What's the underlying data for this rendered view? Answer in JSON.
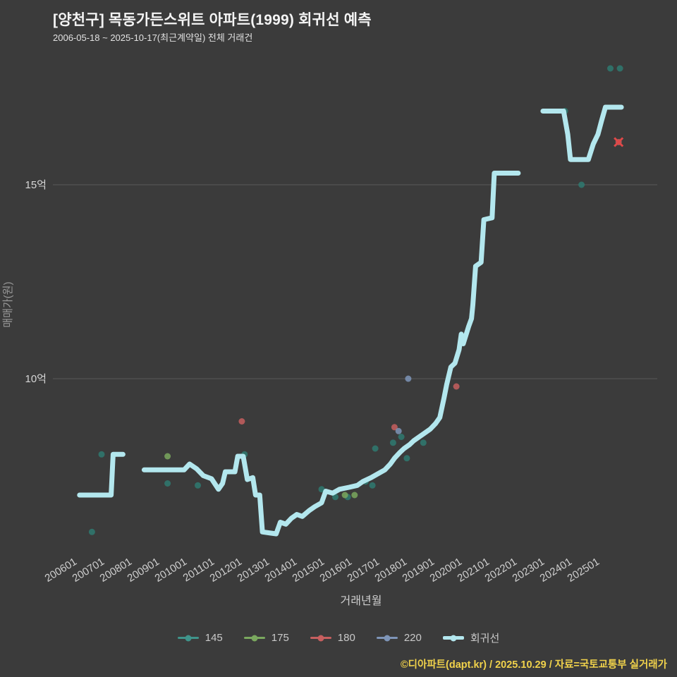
{
  "header": {
    "title": "[양천구] 목동가든스위트 아파트(1999) 회귀선 예측",
    "subtitle": "2006-05-18 ~ 2025-10-17(최근계약일) 전체 거래건"
  },
  "footer": {
    "text": "©디아파트(dapt.kr) / 2025.10.29 / 자료=국토교통부 실거래가"
  },
  "legend": {
    "items": [
      {
        "label": "145",
        "color": "#3f948b"
      },
      {
        "label": "175",
        "color": "#7aa85e"
      },
      {
        "label": "180",
        "color": "#c75f5f"
      },
      {
        "label": "220",
        "color": "#7e95b8"
      },
      {
        "label": "회귀선",
        "color": "#b3e7ee"
      }
    ]
  },
  "chart_data": {
    "type": "line",
    "title": "[양천구] 목동가든스위트 아파트(1999) 회귀선 예측",
    "subtitle": "2006-05-18 ~ 2025-10-17(최근계약일) 전체 거래건",
    "xlabel": "거래년월",
    "ylabel": "매매가(원)",
    "x_ticks": [
      "200601",
      "200701",
      "200801",
      "200901",
      "201001",
      "201101",
      "201201",
      "201301",
      "201401",
      "201501",
      "201601",
      "201701",
      "201801",
      "201901",
      "202001",
      "202101",
      "202201",
      "202301",
      "202401",
      "202501"
    ],
    "y_ticks": [
      {
        "label": "15억",
        "value": 15
      },
      {
        "label": "10억",
        "value": 10
      }
    ],
    "y_unit": "억",
    "ylim": [
      5.8,
      18.3
    ],
    "grid": "horizontal-only",
    "colors": {
      "background": "#3b3b3b",
      "gridline": "#5a5a5a",
      "tick_text": "#cfcfcf"
    },
    "scatter_series": [
      {
        "name": "145",
        "color": "#2f7a71",
        "points": [
          [
            2006.65,
            6.05
          ],
          [
            2007.0,
            8.05
          ],
          [
            2009.4,
            7.3
          ],
          [
            2010.5,
            7.25
          ],
          [
            2012.2,
            8.05
          ],
          [
            2015.0,
            7.15
          ],
          [
            2015.5,
            6.95
          ],
          [
            2015.95,
            6.95
          ],
          [
            2016.6,
            7.35
          ],
          [
            2016.85,
            7.25
          ],
          [
            2016.95,
            8.2
          ],
          [
            2017.6,
            8.35
          ],
          [
            2017.9,
            8.5
          ],
          [
            2018.1,
            7.95
          ],
          [
            2018.7,
            8.35
          ],
          [
            2020.1,
            11.0
          ],
          [
            2023.85,
            16.9
          ],
          [
            2024.45,
            15.0
          ],
          [
            2025.5,
            18.0
          ],
          [
            2025.85,
            18.0
          ]
        ]
      },
      {
        "name": "175",
        "color": "#7aa85e",
        "points": [
          [
            2009.4,
            8.0
          ],
          [
            2015.85,
            7.0
          ],
          [
            2016.2,
            7.0
          ]
        ]
      },
      {
        "name": "180",
        "color": "#c75f5f",
        "points": [
          [
            2012.1,
            8.9
          ],
          [
            2017.65,
            8.75
          ],
          [
            2019.9,
            9.8
          ],
          [
            2025.8,
            16.1
          ]
        ]
      },
      {
        "name": "220",
        "color": "#7e95b8",
        "points": [
          [
            2017.8,
            8.65
          ],
          [
            2018.15,
            10.0
          ]
        ]
      }
    ],
    "regression": {
      "name": "회귀선",
      "color": "#b3e7ee",
      "width": 7,
      "segments": [
        [
          [
            2006.2,
            7.0
          ],
          [
            2007.35,
            7.0
          ],
          [
            2007.42,
            8.05
          ],
          [
            2007.78,
            8.05
          ]
        ],
        [
          [
            2008.55,
            7.65
          ],
          [
            2010.0,
            7.65
          ],
          [
            2010.2,
            7.8
          ],
          [
            2010.45,
            7.68
          ],
          [
            2010.7,
            7.5
          ],
          [
            2011.0,
            7.42
          ],
          [
            2011.25,
            7.15
          ],
          [
            2011.4,
            7.3
          ],
          [
            2011.5,
            7.6
          ],
          [
            2011.85,
            7.6
          ],
          [
            2011.95,
            8.0
          ],
          [
            2012.15,
            8.0
          ],
          [
            2012.3,
            7.4
          ],
          [
            2012.5,
            7.45
          ],
          [
            2012.6,
            7.0
          ],
          [
            2012.75,
            7.0
          ],
          [
            2012.85,
            6.05
          ],
          [
            2013.35,
            6.0
          ],
          [
            2013.5,
            6.3
          ],
          [
            2013.7,
            6.25
          ],
          [
            2013.9,
            6.4
          ],
          [
            2014.1,
            6.5
          ],
          [
            2014.3,
            6.45
          ],
          [
            2014.55,
            6.6
          ],
          [
            2014.75,
            6.7
          ],
          [
            2015.0,
            6.8
          ],
          [
            2015.15,
            7.1
          ],
          [
            2015.4,
            7.05
          ],
          [
            2015.65,
            7.15
          ],
          [
            2016.0,
            7.2
          ],
          [
            2016.3,
            7.25
          ],
          [
            2016.5,
            7.35
          ],
          [
            2016.8,
            7.45
          ],
          [
            2017.05,
            7.55
          ],
          [
            2017.3,
            7.65
          ],
          [
            2017.5,
            7.8
          ],
          [
            2017.65,
            7.95
          ],
          [
            2017.85,
            8.1
          ],
          [
            2018.0,
            8.2
          ],
          [
            2018.2,
            8.3
          ],
          [
            2018.35,
            8.4
          ],
          [
            2018.55,
            8.5
          ],
          [
            2018.75,
            8.6
          ],
          [
            2018.95,
            8.7
          ],
          [
            2019.15,
            8.85
          ],
          [
            2019.3,
            9.0
          ],
          [
            2019.45,
            9.5
          ],
          [
            2019.55,
            9.85
          ],
          [
            2019.7,
            10.3
          ],
          [
            2019.85,
            10.4
          ],
          [
            2020.0,
            10.75
          ],
          [
            2020.08,
            11.15
          ],
          [
            2020.15,
            10.9
          ],
          [
            2020.35,
            11.35
          ],
          [
            2020.45,
            11.55
          ],
          [
            2020.5,
            11.9
          ],
          [
            2020.6,
            12.9
          ],
          [
            2020.8,
            13.0
          ],
          [
            2020.9,
            14.1
          ],
          [
            2021.2,
            14.15
          ],
          [
            2021.28,
            15.3
          ],
          [
            2022.15,
            15.3
          ]
        ],
        [
          [
            2023.05,
            16.9
          ],
          [
            2023.8,
            16.9
          ],
          [
            2023.95,
            16.3
          ],
          [
            2024.05,
            15.65
          ],
          [
            2024.7,
            15.65
          ],
          [
            2024.88,
            16.05
          ],
          [
            2025.05,
            16.3
          ],
          [
            2025.18,
            16.65
          ],
          [
            2025.32,
            17.0
          ],
          [
            2025.9,
            17.0
          ]
        ]
      ]
    },
    "x_marker": {
      "x": 2025.8,
      "y": 16.1,
      "color": "#e04848"
    }
  }
}
